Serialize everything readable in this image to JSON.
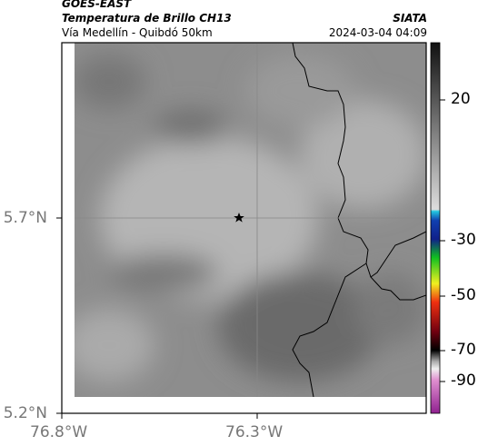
{
  "header": {
    "satellite": "GOES-EAST",
    "product": "Temperatura de Brillo CH13",
    "location": "Vía Medellín - Quibdó 50km",
    "brand": "SIATA",
    "timestamp": "2024-03-04 04:09"
  },
  "map": {
    "lat_labels": [
      "5.7°N",
      "5.2°N"
    ],
    "lon_labels": [
      "76.8°W",
      "76.3°W"
    ]
  },
  "colorbar": {
    "labels": [
      "20",
      "-30",
      "-50",
      "-70",
      "-90"
    ]
  }
}
